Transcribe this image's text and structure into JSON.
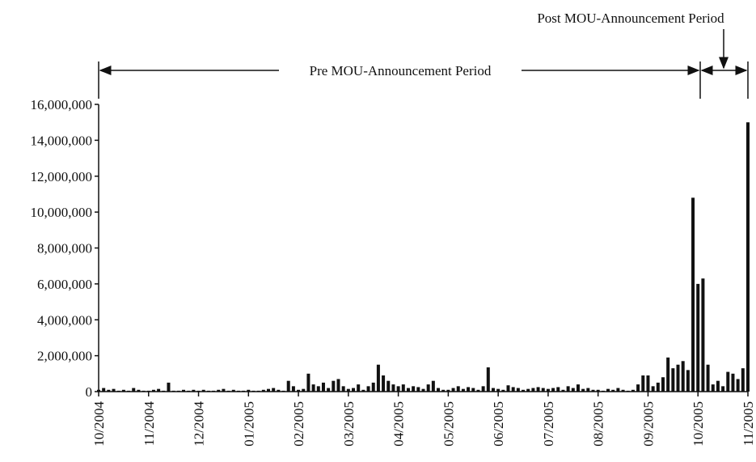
{
  "chart_data": {
    "type": "bar",
    "annotations": [
      "Pre MOU-Announcement Period",
      "Post MOU-Announcement Period"
    ],
    "categories": [
      "10/2004",
      null,
      null,
      null,
      null,
      null,
      null,
      null,
      null,
      null,
      "11/2004",
      null,
      null,
      null,
      null,
      null,
      null,
      null,
      null,
      null,
      "12/2004",
      null,
      null,
      null,
      null,
      null,
      null,
      null,
      null,
      null,
      "01/2005",
      null,
      null,
      null,
      null,
      null,
      null,
      null,
      null,
      null,
      "02/2005",
      null,
      null,
      null,
      null,
      null,
      null,
      null,
      null,
      null,
      "03/2005",
      null,
      null,
      null,
      null,
      null,
      null,
      null,
      null,
      null,
      "04/2005",
      null,
      null,
      null,
      null,
      null,
      null,
      null,
      null,
      null,
      "05/2005",
      null,
      null,
      null,
      null,
      null,
      null,
      null,
      null,
      null,
      "06/2005",
      null,
      null,
      null,
      null,
      null,
      null,
      null,
      null,
      null,
      "07/2005",
      null,
      null,
      null,
      null,
      null,
      null,
      null,
      null,
      null,
      "08/2005",
      null,
      null,
      null,
      null,
      null,
      null,
      null,
      null,
      null,
      "09/2005",
      null,
      null,
      null,
      null,
      null,
      null,
      null,
      null,
      null,
      "10/2005",
      null,
      null,
      null,
      null,
      null,
      null,
      null,
      null,
      null,
      "11/2005"
    ],
    "values": [
      100000,
      200000,
      100000,
      150000,
      50000,
      100000,
      50000,
      200000,
      100000,
      50000,
      50000,
      100000,
      150000,
      50000,
      500000,
      50000,
      50000,
      100000,
      50000,
      100000,
      50000,
      100000,
      50000,
      50000,
      100000,
      150000,
      50000,
      100000,
      50000,
      50000,
      100000,
      50000,
      50000,
      100000,
      150000,
      200000,
      100000,
      50000,
      600000,
      300000,
      100000,
      150000,
      1000000,
      400000,
      300000,
      500000,
      200000,
      600000,
      700000,
      300000,
      150000,
      200000,
      400000,
      100000,
      300000,
      500000,
      1500000,
      900000,
      600000,
      400000,
      300000,
      400000,
      200000,
      300000,
      250000,
      150000,
      400000,
      600000,
      200000,
      100000,
      100000,
      200000,
      300000,
      150000,
      250000,
      200000,
      100000,
      300000,
      1350000,
      200000,
      150000,
      100000,
      350000,
      250000,
      200000,
      100000,
      150000,
      200000,
      250000,
      200000,
      150000,
      200000,
      250000,
      100000,
      300000,
      200000,
      400000,
      150000,
      200000,
      100000,
      100000,
      50000,
      150000,
      100000,
      200000,
      100000,
      50000,
      100000,
      400000,
      900000,
      900000,
      300000,
      500000,
      800000,
      1900000,
      1300000,
      1500000,
      1700000,
      1200000,
      10800000,
      6000000,
      6300000,
      1500000,
      400000,
      600000,
      300000,
      1100000,
      1000000,
      700000,
      1300000,
      15000000
    ],
    "color": "#111111",
    "ylim": [
      0,
      16000000
    ],
    "yticks": [
      0,
      {
        "value": 2000000,
        "label": "2,000,000"
      },
      {
        "value": 4000000,
        "label": "4,000,000"
      },
      {
        "value": 6000000,
        "label": "6,000,000"
      },
      {
        "value": 8000000,
        "label": "8,000,000"
      },
      {
        "value": 10000000,
        "label": "10,000,000"
      },
      {
        "value": 12000000,
        "label": "12,000,000"
      },
      {
        "value": 14000000,
        "label": "14,000,000"
      },
      {
        "value": 16000000,
        "label": "16,000,000"
      }
    ]
  }
}
